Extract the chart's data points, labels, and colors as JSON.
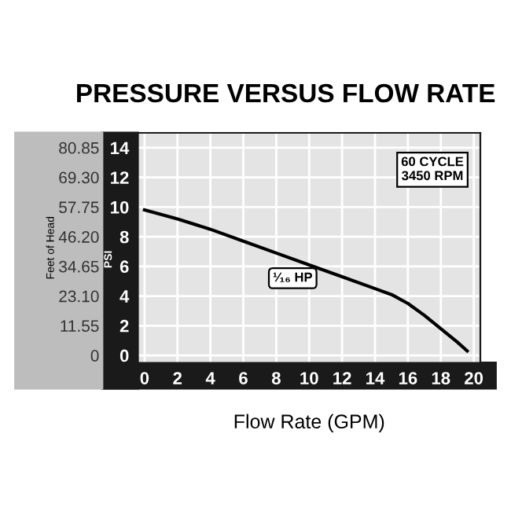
{
  "chart_data": {
    "type": "line",
    "title": "PRESSURE VERSUS FLOW RATE",
    "xlabel": "Flow Rate (GPM)",
    "ylabel": "PSI",
    "y2label": "Feet of Head",
    "x": [
      0,
      2,
      4,
      6,
      8,
      10,
      12,
      14,
      15,
      16,
      17,
      18,
      19,
      19.6
    ],
    "series": [
      {
        "color": "#000000",
        "values": [
          9.8,
          9.2,
          8.5,
          7.7,
          6.9,
          6.1,
          5.3,
          4.5,
          4.1,
          3.5,
          2.7,
          1.8,
          0.9,
          0.3
        ]
      }
    ],
    "xlim": [
      -0.4,
      20.4
    ],
    "xticks": [
      0,
      2,
      4,
      6,
      8,
      10,
      12,
      14,
      16,
      18,
      20
    ],
    "ylim": [
      -0.5,
      15
    ],
    "yticks": [
      0,
      2,
      4,
      6,
      8,
      10,
      12,
      14
    ],
    "y2lim": [
      -2.8875,
      86.625
    ],
    "y2ticks": [
      {
        "value": 0,
        "label": "0"
      },
      {
        "value": 11.55,
        "label": "11.55"
      },
      {
        "value": 23.1,
        "label": "23.10"
      },
      {
        "value": 34.65,
        "label": "34.65"
      },
      {
        "value": 46.2,
        "label": "46.20"
      },
      {
        "value": 57.75,
        "label": "57.75"
      },
      {
        "value": 69.3,
        "label": "69.30"
      },
      {
        "value": 80.85,
        "label": "80.85"
      }
    ],
    "annotations": [
      "60 CYCLE\n3450 RPM",
      {
        "text": "¹⁄₁₆ HP",
        "x": 9,
        "y": 5.2
      }
    ],
    "grid": true,
    "legend": false,
    "marker": "none",
    "line_style": "solid"
  }
}
